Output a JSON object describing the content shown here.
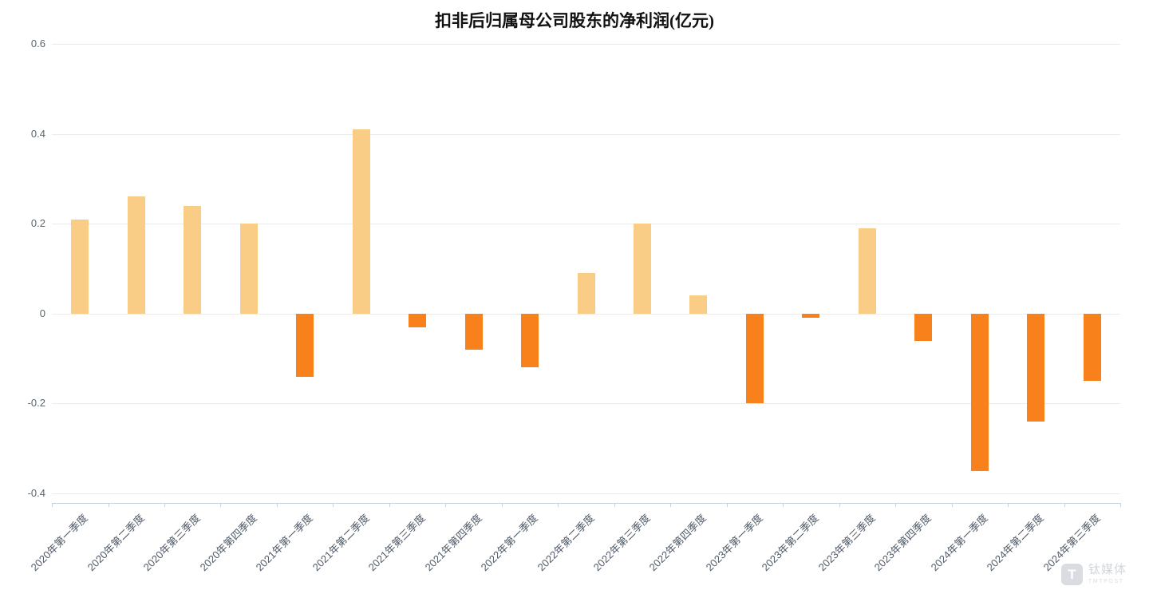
{
  "chart_data": {
    "type": "bar",
    "title": "扣非后归属母公司股东的净利润(亿元)",
    "xlabel": "",
    "ylabel": "",
    "categories": [
      "2020年第一季度",
      "2020年第二季度",
      "2020年第三季度",
      "2020年第四季度",
      "2021年第一季度",
      "2021年第二季度",
      "2021年第三季度",
      "2021年第四季度",
      "2022年第一季度",
      "2022年第二季度",
      "2022年第三季度",
      "2022年第四季度",
      "2023年第一季度",
      "2023年第二季度",
      "2023年第三季度",
      "2023年第四季度",
      "2024年第一季度",
      "2024年第二季度",
      "2024年第三季度"
    ],
    "values": [
      0.21,
      0.26,
      0.24,
      0.2,
      -0.14,
      0.41,
      -0.03,
      -0.08,
      -0.12,
      0.09,
      0.2,
      0.04,
      -0.2,
      -0.01,
      0.19,
      -0.06,
      -0.35,
      -0.24,
      -0.15
    ],
    "ylim": [
      -0.4,
      0.6
    ],
    "yticks": [
      0.6,
      0.4,
      0.2,
      0,
      -0.2,
      -0.4
    ],
    "ytick_interval": 0.2,
    "grid": true,
    "legend": "none",
    "positive_color": "#FACD87",
    "negative_color": "#F8811B"
  },
  "watermark": {
    "brand": "钛媒体",
    "sub": "TMTPOST",
    "logo_letter": "T"
  }
}
